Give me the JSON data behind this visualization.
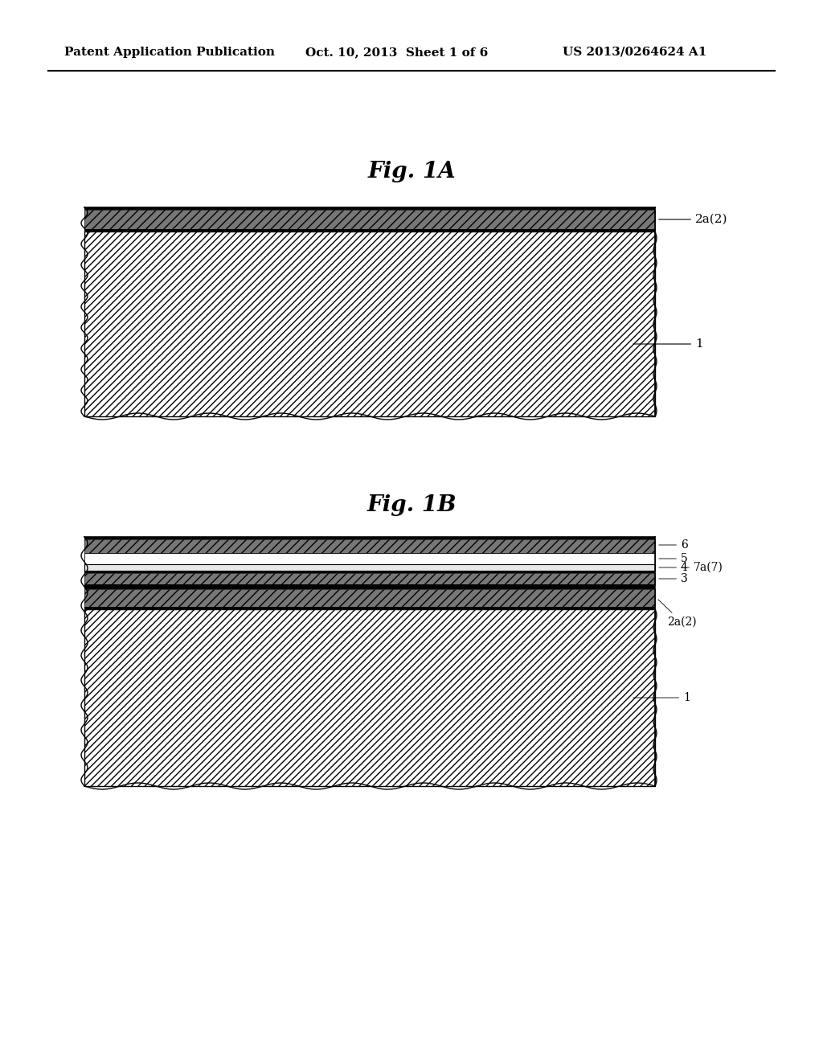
{
  "bg_color": "#ffffff",
  "header_left": "Patent Application Publication",
  "header_mid": "Oct. 10, 2013  Sheet 1 of 6",
  "header_right": "US 2013/0264624 A1",
  "fig1a_title": "Fig. 1A",
  "fig1b_title": "Fig. 1B"
}
